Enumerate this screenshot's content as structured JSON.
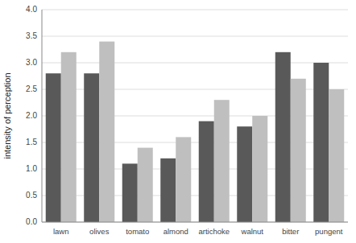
{
  "chart_data": {
    "type": "bar",
    "categories": [
      "lawn",
      "olives",
      "tomato",
      "almond",
      "artichoke",
      "walnut",
      "bitter",
      "pungent"
    ],
    "series": [
      {
        "color": "#595959",
        "values": [
          2.8,
          2.8,
          1.1,
          1.2,
          1.9,
          1.8,
          3.2,
          3.0
        ]
      },
      {
        "color": "#bfbfbf",
        "values": [
          3.2,
          3.4,
          1.4,
          1.6,
          2.3,
          2.0,
          2.7,
          2.5
        ]
      }
    ],
    "ylabel": "intensity of perception",
    "ylim": [
      0,
      4
    ],
    "yticks": [
      {
        "value": 0,
        "label": "0.0"
      },
      0.5,
      {
        "value": 1,
        "label": "1.0"
      },
      1.5,
      {
        "value": 2,
        "label": "2.0"
      },
      2.5,
      {
        "value": 3,
        "label": "3.0"
      },
      3.5,
      {
        "value": 4,
        "label": "4.0"
      }
    ],
    "grid": true
  }
}
